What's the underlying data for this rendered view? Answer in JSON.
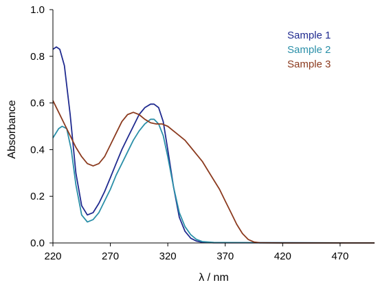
{
  "chart_data": {
    "type": "line",
    "xlabel": "λ / nm",
    "ylabel": "Absorbance",
    "xlim": [
      220,
      500
    ],
    "ylim": [
      0,
      1.0
    ],
    "x_ticks": [
      "220",
      "270",
      "320",
      "370",
      "420",
      "470"
    ],
    "x_tick_values": [
      220,
      270,
      320,
      370,
      420,
      470
    ],
    "y_ticks": [
      "0.0",
      "0.2",
      "0.4",
      "0.6",
      "0.8",
      "1.0"
    ],
    "y_tick_values": [
      0,
      0.2,
      0.4,
      0.6,
      0.8,
      1.0
    ],
    "legend_position": "top-right",
    "grid": false,
    "series": [
      {
        "name": "Sample 1",
        "color": "#1f2a8f",
        "points": [
          [
            220,
            0.83
          ],
          [
            223,
            0.84
          ],
          [
            226,
            0.83
          ],
          [
            230,
            0.76
          ],
          [
            235,
            0.55
          ],
          [
            240,
            0.3
          ],
          [
            245,
            0.16
          ],
          [
            250,
            0.12
          ],
          [
            255,
            0.13
          ],
          [
            260,
            0.17
          ],
          [
            265,
            0.22
          ],
          [
            270,
            0.28
          ],
          [
            275,
            0.34
          ],
          [
            280,
            0.4
          ],
          [
            285,
            0.45
          ],
          [
            290,
            0.5
          ],
          [
            295,
            0.55
          ],
          [
            300,
            0.58
          ],
          [
            305,
            0.595
          ],
          [
            308,
            0.595
          ],
          [
            312,
            0.58
          ],
          [
            316,
            0.52
          ],
          [
            320,
            0.4
          ],
          [
            325,
            0.24
          ],
          [
            330,
            0.11
          ],
          [
            335,
            0.05
          ],
          [
            340,
            0.02
          ],
          [
            345,
            0.008
          ],
          [
            350,
            0.003
          ],
          [
            360,
            0.001
          ],
          [
            400,
            0.001
          ],
          [
            500,
            0.0
          ]
        ]
      },
      {
        "name": "Sample 2",
        "color": "#2a8fa8",
        "points": [
          [
            220,
            0.45
          ],
          [
            225,
            0.49
          ],
          [
            228,
            0.5
          ],
          [
            232,
            0.49
          ],
          [
            236,
            0.4
          ],
          [
            240,
            0.25
          ],
          [
            245,
            0.12
          ],
          [
            250,
            0.09
          ],
          [
            255,
            0.1
          ],
          [
            260,
            0.13
          ],
          [
            265,
            0.18
          ],
          [
            270,
            0.23
          ],
          [
            275,
            0.29
          ],
          [
            280,
            0.34
          ],
          [
            285,
            0.39
          ],
          [
            290,
            0.44
          ],
          [
            295,
            0.48
          ],
          [
            300,
            0.51
          ],
          [
            305,
            0.53
          ],
          [
            308,
            0.53
          ],
          [
            312,
            0.51
          ],
          [
            316,
            0.46
          ],
          [
            320,
            0.37
          ],
          [
            325,
            0.24
          ],
          [
            330,
            0.13
          ],
          [
            335,
            0.07
          ],
          [
            340,
            0.035
          ],
          [
            345,
            0.015
          ],
          [
            350,
            0.006
          ],
          [
            360,
            0.002
          ],
          [
            400,
            0.001
          ],
          [
            500,
            0.0
          ]
        ]
      },
      {
        "name": "Sample 3",
        "color": "#8b3a1e",
        "points": [
          [
            220,
            0.61
          ],
          [
            225,
            0.56
          ],
          [
            230,
            0.51
          ],
          [
            235,
            0.46
          ],
          [
            240,
            0.41
          ],
          [
            245,
            0.37
          ],
          [
            250,
            0.34
          ],
          [
            255,
            0.33
          ],
          [
            260,
            0.34
          ],
          [
            265,
            0.37
          ],
          [
            270,
            0.42
          ],
          [
            275,
            0.47
          ],
          [
            280,
            0.52
          ],
          [
            285,
            0.55
          ],
          [
            290,
            0.56
          ],
          [
            295,
            0.55
          ],
          [
            300,
            0.53
          ],
          [
            305,
            0.515
          ],
          [
            310,
            0.51
          ],
          [
            315,
            0.51
          ],
          [
            320,
            0.5
          ],
          [
            325,
            0.48
          ],
          [
            330,
            0.46
          ],
          [
            335,
            0.44
          ],
          [
            340,
            0.41
          ],
          [
            345,
            0.38
          ],
          [
            350,
            0.35
          ],
          [
            355,
            0.31
          ],
          [
            360,
            0.27
          ],
          [
            365,
            0.23
          ],
          [
            370,
            0.18
          ],
          [
            375,
            0.13
          ],
          [
            380,
            0.08
          ],
          [
            385,
            0.04
          ],
          [
            390,
            0.015
          ],
          [
            395,
            0.004
          ],
          [
            400,
            0.001
          ],
          [
            420,
            0.0
          ],
          [
            500,
            0.0
          ]
        ]
      }
    ]
  }
}
